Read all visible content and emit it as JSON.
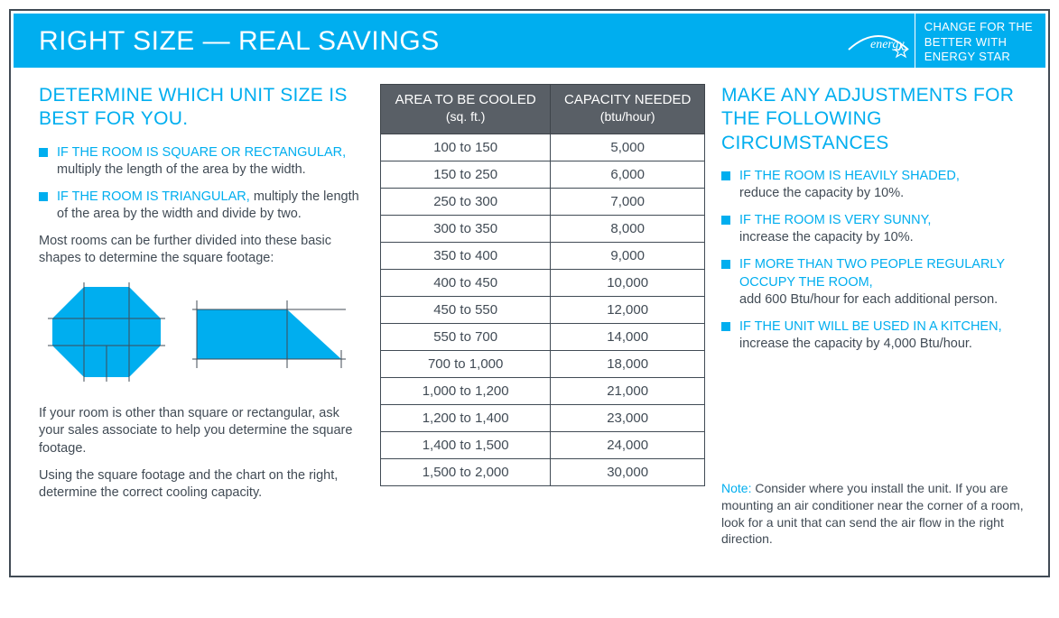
{
  "colors": {
    "accent": "#00aeef",
    "text": "#414b55",
    "table_header_bg": "#595f66",
    "border": "#414b55",
    "white": "#ffffff"
  },
  "header": {
    "title": "RIGHT SIZE — REAL SAVINGS",
    "badge_line1": "CHANGE FOR THE",
    "badge_line2": "BETTER WITH",
    "badge_line3": "ENERGY STAR"
  },
  "left": {
    "title": "DETERMINE WHICH UNIT SIZE IS BEST FOR YOU.",
    "bullets": [
      {
        "head": "IF THE ROOM IS SQUARE OR RECTANGULAR,",
        "body": "multiply the length of the area by the width."
      },
      {
        "head": "IF THE ROOM IS TRIANGULAR,",
        "body": "multiply the length of the area by the width and divide by two."
      }
    ],
    "para1": "Most rooms can be further divided into these basic shapes to determine the square footage:",
    "para2": "If your room is other than square or rectangular, ask your sales associate to help you determine the square footage.",
    "para3": "Using the square footage and the chart on the right, determine the correct cooling capacity."
  },
  "table": {
    "col1_label": "AREA TO BE COOLED",
    "col1_unit": "(sq. ft.)",
    "col2_label": "CAPACITY NEEDED",
    "col2_unit": "(btu/hour)",
    "rows": [
      [
        "100 to 150",
        "5,000"
      ],
      [
        "150 to 250",
        "6,000"
      ],
      [
        "250 to 300",
        "7,000"
      ],
      [
        "300 to 350",
        "8,000"
      ],
      [
        "350 to 400",
        "9,000"
      ],
      [
        "400 to 450",
        "10,000"
      ],
      [
        "450 to 550",
        "12,000"
      ],
      [
        "550 to 700",
        "14,000"
      ],
      [
        "700 to 1,000",
        "18,000"
      ],
      [
        "1,000 to 1,200",
        "21,000"
      ],
      [
        "1,200 to 1,400",
        "23,000"
      ],
      [
        "1,400 to 1,500",
        "24,000"
      ],
      [
        "1,500 to 2,000",
        "30,000"
      ]
    ]
  },
  "right": {
    "title": "MAKE ANY ADJUSTMENTS FOR THE FOLLOWING CIRCUMSTANCES",
    "bullets": [
      {
        "head": "IF THE ROOM IS HEAVILY SHADED,",
        "body": "reduce the capacity by 10%."
      },
      {
        "head": "IF THE ROOM IS VERY SUNNY,",
        "body": "increase the capacity by 10%."
      },
      {
        "head": "IF MORE THAN TWO PEOPLE REGULARLY OCCUPY THE ROOM,",
        "body": "add 600 Btu/hour for each additional person."
      },
      {
        "head": "IF THE UNIT WILL BE USED IN A KITCHEN,",
        "body": "increase the capacity by 4,000 Btu/hour."
      }
    ],
    "note_label": "Note:",
    "note_body": " Consider where you install the unit. If you are mounting an air conditioner near the corner of a room, look for a unit that can send the air flow in the right direction."
  }
}
